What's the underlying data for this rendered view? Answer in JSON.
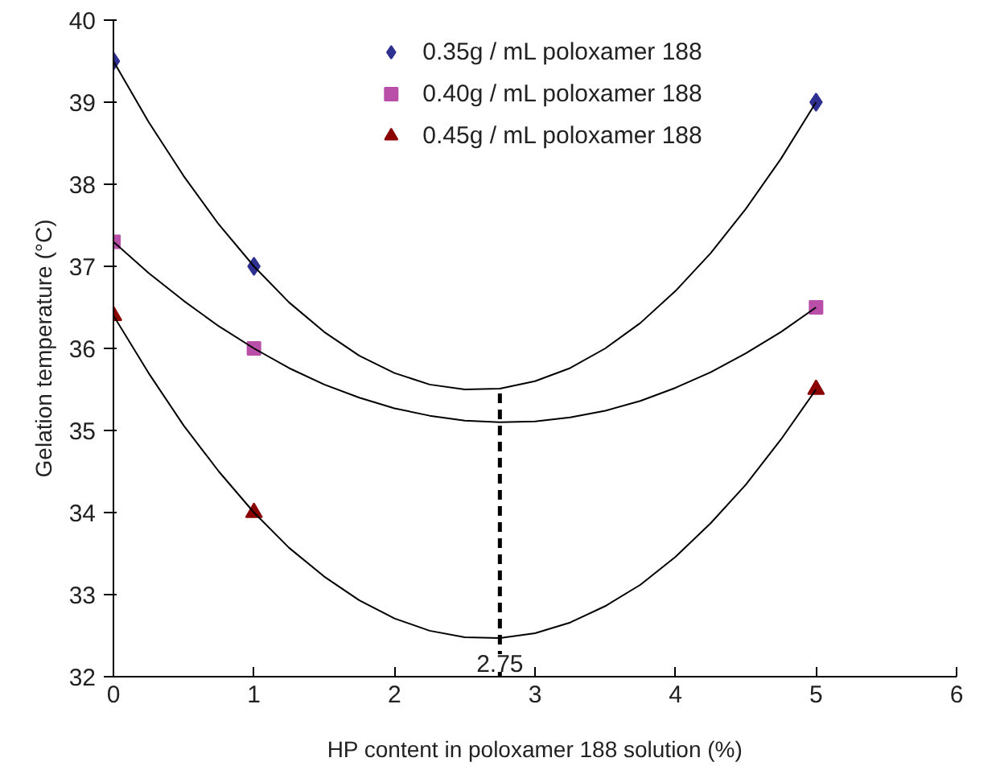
{
  "chart_data": {
    "type": "scatter",
    "xlabel": "HP content in poloxamer 188 solution (%)",
    "ylabel": "Gelation temperature (°C)",
    "xlim": [
      0,
      6
    ],
    "ylim": [
      32,
      40
    ],
    "xticks": [
      0,
      1,
      2,
      3,
      4,
      5,
      6
    ],
    "yticks": [
      32,
      33,
      34,
      35,
      36,
      37,
      38,
      39,
      40
    ],
    "grid": false,
    "legend": "top",
    "series": [
      {
        "name": "0.35g / mL poloxamer 188",
        "color": "#2e3192",
        "marker": "diamond",
        "x": [
          0,
          1,
          5
        ],
        "values": [
          39.5,
          37.0,
          39.0
        ]
      },
      {
        "name": "0.40g / mL poloxamer 188",
        "color": "#b94fa8",
        "marker": "square",
        "x": [
          0,
          1,
          5
        ],
        "values": [
          37.3,
          36.0,
          36.5
        ]
      },
      {
        "name": "0.45g / mL poloxamer 188",
        "color": "#8b0000",
        "marker": "triangle",
        "x": [
          0,
          1,
          5
        ],
        "values": [
          36.4,
          34.0,
          35.5
        ]
      },
      {
        "type": "line",
        "color": "#000000",
        "line_style": "solid",
        "x": [
          0,
          0.25,
          0.5,
          0.75,
          1,
          1.25,
          1.5,
          1.75,
          2,
          2.25,
          2.5,
          2.75,
          3,
          3.25,
          3.5,
          3.75,
          4,
          4.25,
          4.5,
          4.75,
          5
        ],
        "values": [
          39.5,
          38.76,
          38.1,
          37.51,
          37.0,
          36.56,
          36.2,
          35.91,
          35.7,
          35.56,
          35.5,
          35.51,
          35.6,
          35.76,
          36.0,
          36.31,
          36.7,
          37.16,
          37.7,
          38.31,
          39.0
        ]
      },
      {
        "type": "line",
        "color": "#000000",
        "line_style": "solid",
        "x": [
          0,
          0.25,
          0.5,
          0.75,
          1,
          1.25,
          1.5,
          1.75,
          2,
          2.25,
          2.5,
          2.75,
          3,
          3.25,
          3.5,
          3.75,
          4,
          4.25,
          4.5,
          4.75,
          5
        ],
        "values": [
          37.3,
          36.92,
          36.58,
          36.27,
          36.0,
          35.76,
          35.56,
          35.4,
          35.27,
          35.18,
          35.12,
          35.1,
          35.11,
          35.16,
          35.24,
          35.36,
          35.52,
          35.71,
          35.94,
          36.2,
          36.5
        ]
      },
      {
        "type": "line",
        "color": "#000000",
        "line_style": "solid",
        "x": [
          0,
          0.25,
          0.5,
          0.75,
          1,
          1.25,
          1.5,
          1.75,
          2,
          2.25,
          2.5,
          2.75,
          3,
          3.25,
          3.5,
          3.75,
          4,
          4.25,
          4.5,
          4.75,
          5
        ],
        "values": [
          36.4,
          35.7,
          35.06,
          34.5,
          34.0,
          33.57,
          33.22,
          32.93,
          32.71,
          32.56,
          32.48,
          32.47,
          32.53,
          32.66,
          32.86,
          33.12,
          33.46,
          33.87,
          34.34,
          34.89,
          35.5
        ]
      },
      {
        "type": "line",
        "color": "#000000",
        "line_style": "dashed",
        "x": [
          2.75,
          2.75
        ],
        "values": [
          32,
          35.5
        ]
      }
    ],
    "annotations": [
      {
        "text": "2.75",
        "x": 2.75,
        "y": 32
      }
    ]
  }
}
